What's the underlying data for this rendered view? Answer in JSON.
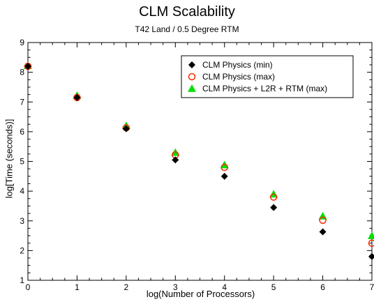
{
  "chart_data": {
    "type": "scatter",
    "title": "CLM Scalability",
    "subtitle": "T42 Land / 0.5 Degree RTM",
    "xlabel": "log(Number of Processors)",
    "ylabel": "log[Time (seconds)]",
    "xlim": [
      0,
      7
    ],
    "ylim": [
      1,
      9
    ],
    "xticks": [
      "0",
      "1",
      "2",
      "3",
      "4",
      "5",
      "6",
      "7"
    ],
    "yticks": [
      "1",
      "2",
      "3",
      "4",
      "5",
      "6",
      "7",
      "8",
      "9"
    ],
    "grid": false,
    "legend_position": "top-right",
    "series": [
      {
        "name": "CLM Physics (min)",
        "marker": "diamond",
        "color": "#000000",
        "x": [
          0,
          1,
          2,
          3,
          4,
          5,
          6,
          7
        ],
        "y": [
          8.2,
          7.15,
          6.1,
          5.05,
          4.5,
          3.45,
          2.63,
          1.8
        ]
      },
      {
        "name": "CLM Physics (max)",
        "marker": "circle",
        "color": "#ff2a00",
        "x": [
          0,
          1,
          2,
          3,
          4,
          5,
          6,
          7
        ],
        "y": [
          8.2,
          7.15,
          6.13,
          5.22,
          4.8,
          3.8,
          3.02,
          2.25
        ]
      },
      {
        "name": "CLM Physics + L2R + RTM (max)",
        "marker": "triangle",
        "color": "#00e000",
        "x": [
          0,
          1,
          2,
          3,
          4,
          5,
          6,
          7
        ],
        "y": [
          8.22,
          7.22,
          6.2,
          5.3,
          4.88,
          3.9,
          3.16,
          2.5
        ]
      }
    ]
  }
}
